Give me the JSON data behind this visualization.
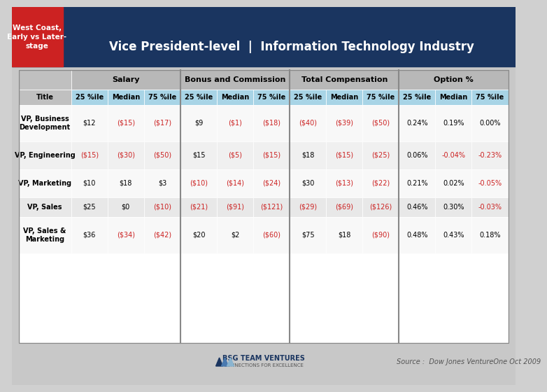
{
  "title_left": "West Coast,\nEarly vs Later-\nstage",
  "title_main": "Vice President-level  |  Information Technology Industry",
  "source": "Source :  Dow Jones VentureOne Oct 2009",
  "col_groups": [
    "Salary",
    "Bonus and Commission",
    "Total Compensation",
    "Option %"
  ],
  "col_sub": [
    "25 %ile",
    "Median",
    "75 %ile"
  ],
  "row_labels": [
    "VP, Business\nDevelopment",
    "VP, Engineering",
    "VP, Marketing",
    "VP, Sales",
    "VP, Sales &\nMarketing"
  ],
  "data": [
    [
      "$12",
      "($15)",
      "($17)",
      "$9",
      "($1)",
      "($18)",
      "($40)",
      "($39)",
      "($50)",
      "0.24%",
      "0.19%",
      "0.00%"
    ],
    [
      "($15)",
      "($30)",
      "($50)",
      "$15",
      "($5)",
      "($15)",
      "$18",
      "($15)",
      "($25)",
      "0.06%",
      "-0.04%",
      "-0.23%"
    ],
    [
      "$10",
      "$18",
      "$3",
      "($10)",
      "($14)",
      "($24)",
      "$30",
      "($13)",
      "($22)",
      "0.21%",
      "0.02%",
      "-0.05%"
    ],
    [
      "$25",
      "$0",
      "($10)",
      "($21)",
      "($91)",
      "($121)",
      "($29)",
      "($69)",
      "($126)",
      "0.46%",
      "0.30%",
      "-0.03%"
    ],
    [
      "$36",
      "($34)",
      "($42)",
      "$20",
      "$2",
      "($60)",
      "$75",
      "$18",
      "($90)",
      "0.48%",
      "0.43%",
      "0.18%"
    ]
  ],
  "red_mask": [
    [
      false,
      true,
      true,
      false,
      true,
      true,
      true,
      true,
      true,
      false,
      false,
      false
    ],
    [
      true,
      true,
      true,
      false,
      true,
      true,
      false,
      true,
      true,
      false,
      true,
      true
    ],
    [
      false,
      false,
      false,
      true,
      true,
      true,
      false,
      true,
      true,
      false,
      false,
      true
    ],
    [
      false,
      false,
      true,
      true,
      true,
      true,
      true,
      true,
      true,
      false,
      false,
      true
    ],
    [
      false,
      true,
      true,
      false,
      false,
      true,
      false,
      false,
      true,
      false,
      false,
      false
    ]
  ],
  "colors": {
    "header_dark_blue": "#1a3560",
    "header_red": "#cc2222",
    "col_header_gray": "#b0b0b0",
    "col_subheader_lightblue": "#a8d4e6",
    "row_bg_white": "#ffffff",
    "row_bg_light": "#f0f0f0",
    "text_black": "#000000",
    "text_red": "#cc2222",
    "text_white": "#ffffff",
    "border_color": "#999999",
    "vp_sales_bg": "#e8e8e8"
  }
}
